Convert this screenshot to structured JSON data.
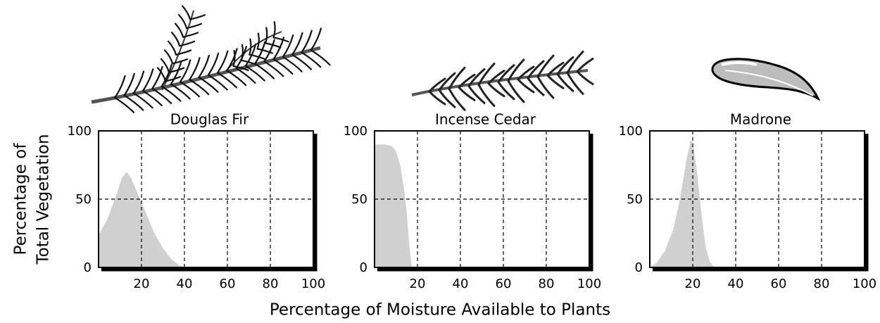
{
  "ylabel": [
    "Percentage of",
    "Total Vegetation"
  ],
  "xlabel": "Percentage of Moisture Available to Plants",
  "chart_data": [
    {
      "type": "area",
      "title": "Douglas Fir",
      "color": "#d0d0d0",
      "x": [
        0,
        4,
        8,
        11,
        13,
        15,
        18,
        22,
        26,
        30,
        34,
        38,
        40
      ],
      "values": [
        24,
        35,
        52,
        66,
        70,
        66,
        55,
        40,
        25,
        14,
        6,
        1,
        0
      ],
      "xlim": [
        0,
        100
      ],
      "ylim": [
        0,
        100
      ],
      "xticks": [
        20,
        40,
        60,
        80,
        100
      ],
      "yticks": [
        0,
        50,
        100
      ],
      "grid": true
    },
    {
      "type": "area",
      "title": "Incense Cedar",
      "color": "#d0d0d0",
      "x": [
        0,
        5,
        8,
        10,
        12,
        14,
        15,
        16,
        17,
        17.5
      ],
      "values": [
        90,
        90,
        89,
        85,
        75,
        55,
        40,
        20,
        5,
        0
      ],
      "xlim": [
        0,
        100
      ],
      "ylim": [
        0,
        100
      ],
      "xticks": [
        20,
        40,
        60,
        80,
        100
      ],
      "yticks": [
        0,
        50,
        100
      ],
      "grid": true
    },
    {
      "type": "area",
      "title": "Madrone",
      "color": "#d0d0d0",
      "x": [
        0,
        3,
        7,
        11,
        14,
        17,
        19,
        20,
        22,
        24,
        26,
        28,
        30
      ],
      "values": [
        0,
        3,
        12,
        28,
        50,
        78,
        93,
        92,
        70,
        40,
        15,
        4,
        0
      ],
      "xlim": [
        0,
        100
      ],
      "ylim": [
        0,
        100
      ],
      "xticks": [
        20,
        40,
        60,
        80,
        100
      ],
      "yticks": [
        0,
        50,
        100
      ],
      "grid": true
    }
  ]
}
